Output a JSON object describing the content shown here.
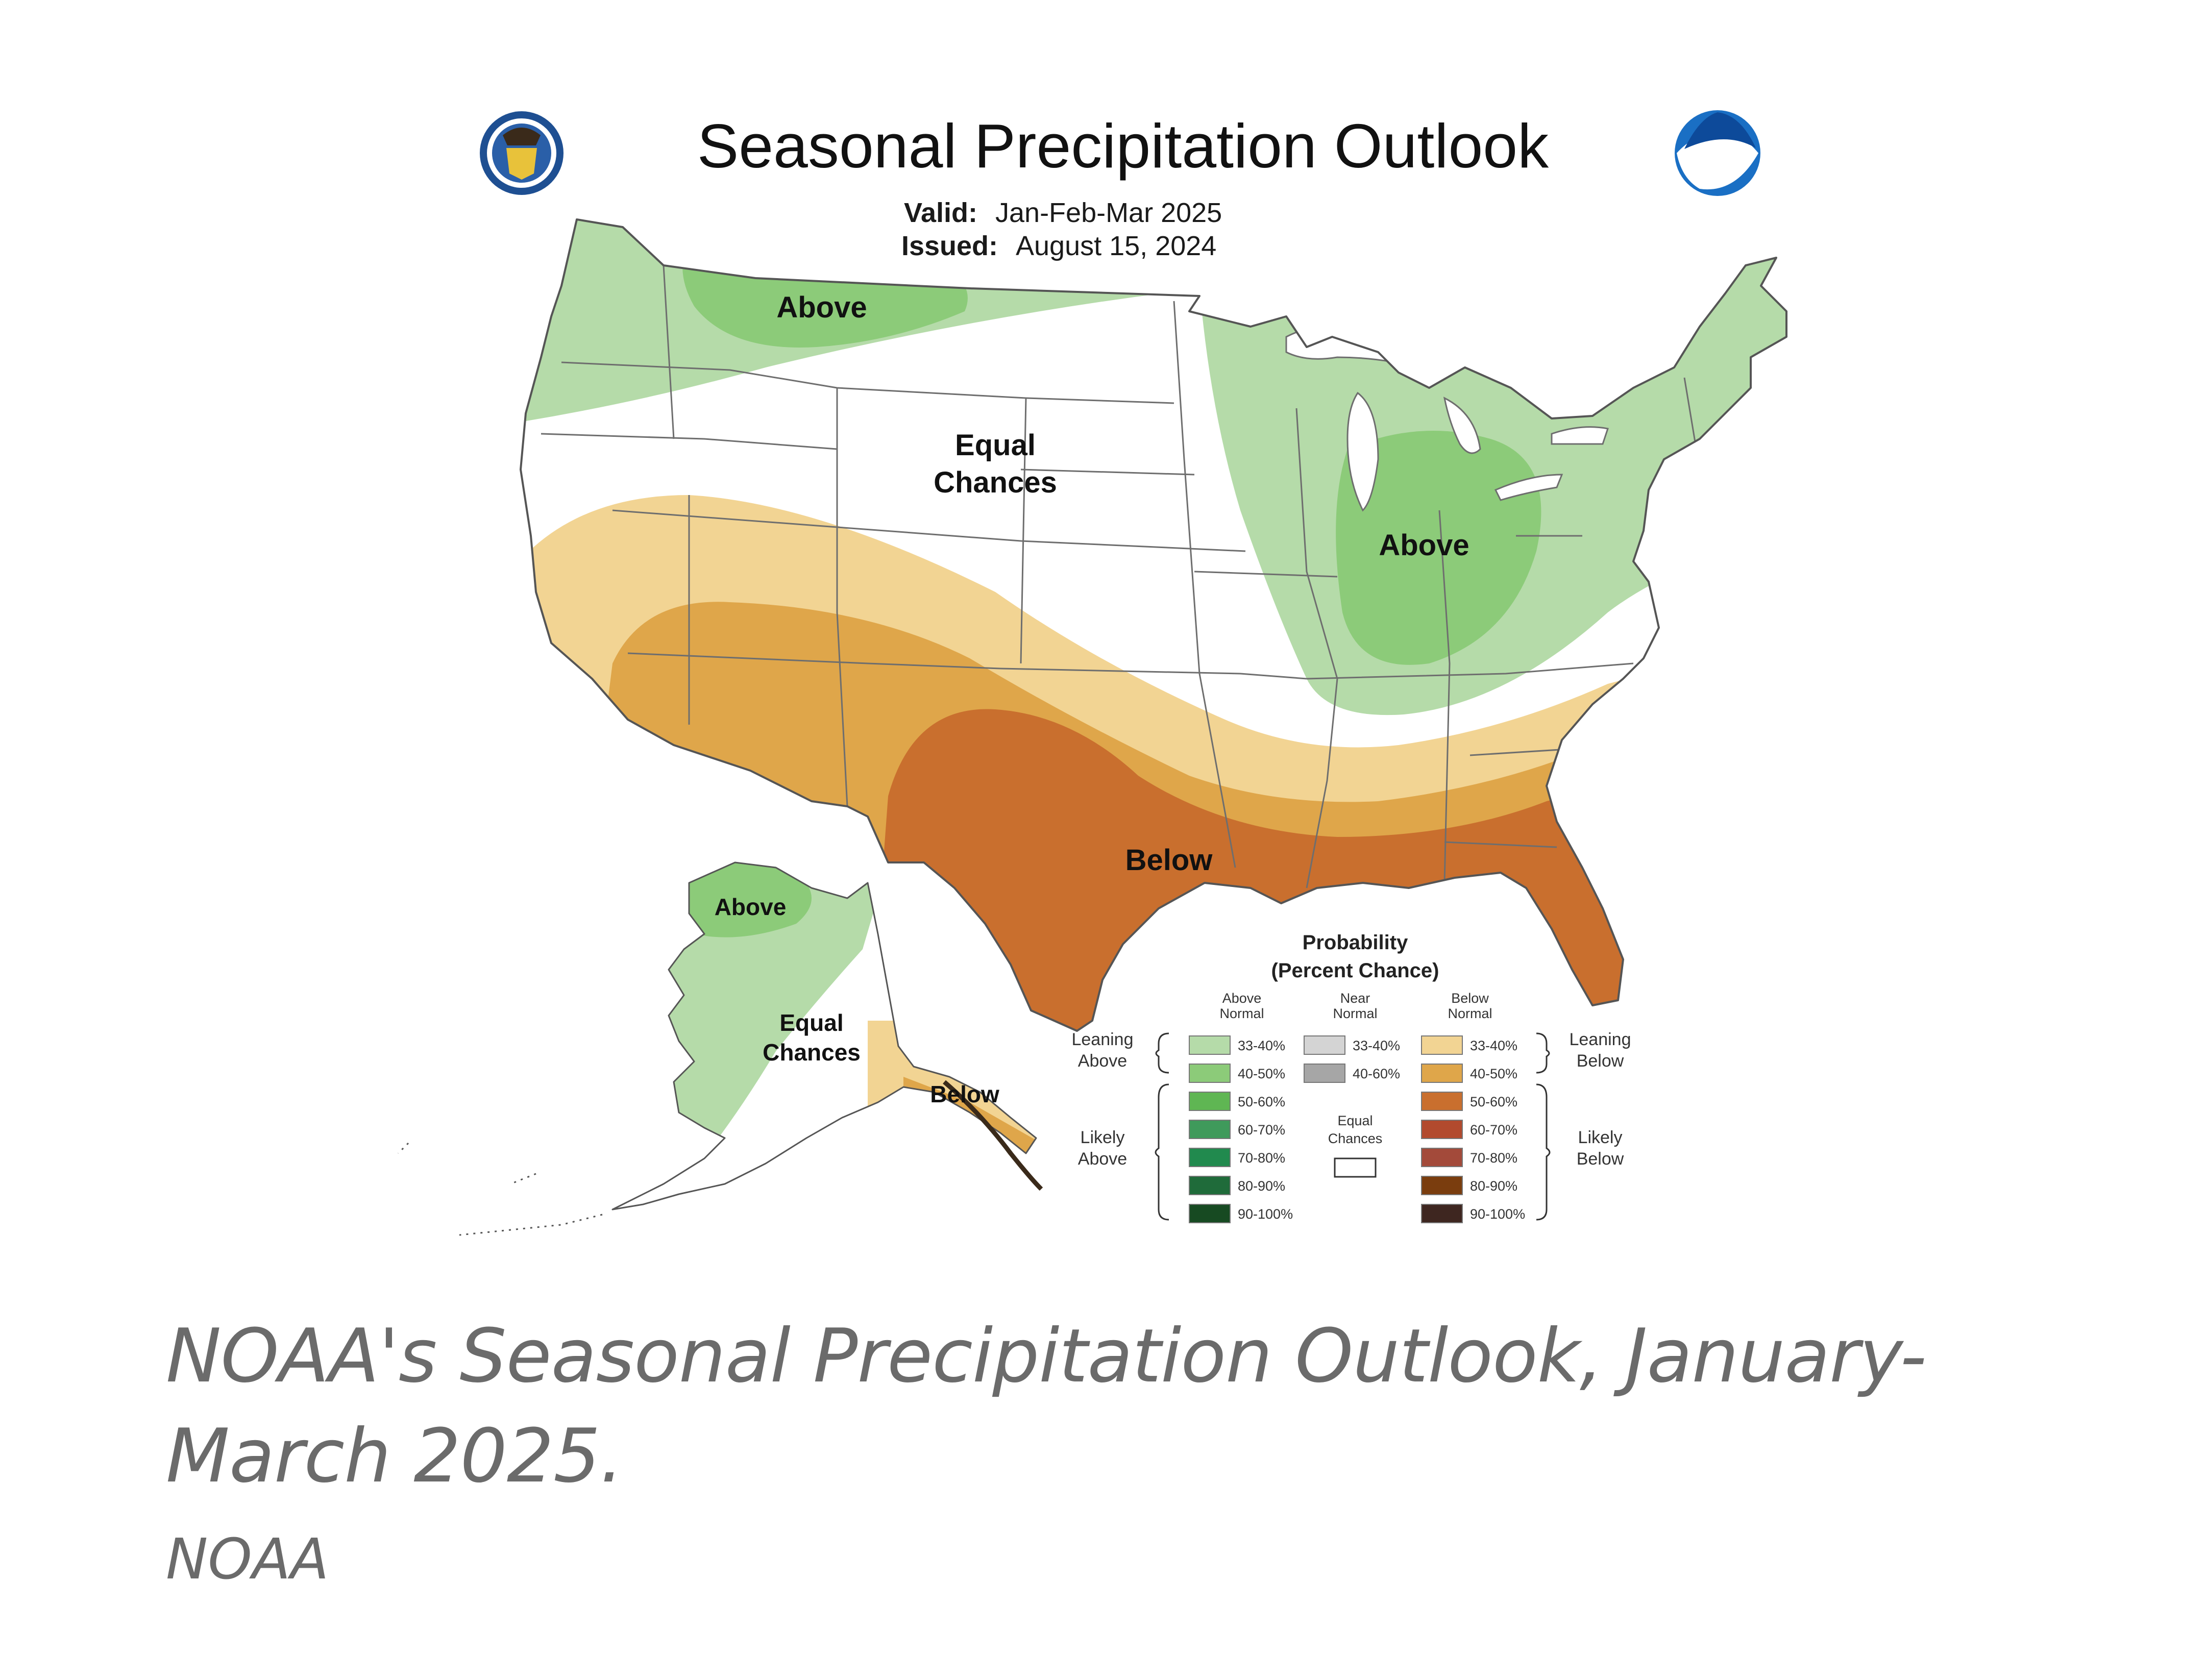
{
  "map": {
    "title": "Seasonal Precipitation Outlook",
    "valid_label": "Valid:",
    "valid_value": "Jan-Feb-Mar 2025",
    "issued_label": "Issued:",
    "issued_value": "August 15, 2024",
    "regions": {
      "northwest_above": "Above",
      "plains_equal_1": "Equal",
      "plains_equal_2": "Chances",
      "midwest_above": "Above",
      "south_below": "Below",
      "alaska_above": "Above",
      "alaska_equal_1": "Equal",
      "alaska_equal_2": "Chances",
      "alaska_below": "Below"
    },
    "colors": {
      "above_leaning": "#b5dba9",
      "above_40": "#8ccb79",
      "leaning_below": "#f2d493",
      "below_40": "#dfa64a",
      "below_50": "#c96f2e",
      "ocean": "#ffffff",
      "noaa_blue": "#1a6fc4"
    },
    "icons": {
      "left_logo": "department-of-commerce-seal-icon",
      "right_logo": "noaa-logo-icon"
    },
    "legend": {
      "title_1": "Probability",
      "title_2": "(Percent Chance)",
      "col_above_1": "Above",
      "col_above_2": "Normal",
      "col_near_1": "Near",
      "col_near_2": "Normal",
      "col_below_1": "Below",
      "col_below_2": "Normal",
      "leaning_above_1": "Leaning",
      "leaning_above_2": "Above",
      "likely_above_1": "Likely",
      "likely_above_2": "Above",
      "leaning_below_1": "Leaning",
      "leaning_below_2": "Below",
      "likely_below_1": "Likely",
      "likely_below_2": "Below",
      "equal_1": "Equal",
      "equal_2": "Chances",
      "above_rows": [
        {
          "label": "33-40%",
          "color": "#b5dba9"
        },
        {
          "label": "40-50%",
          "color": "#8ccb79"
        },
        {
          "label": "50-60%",
          "color": "#5fb653"
        },
        {
          "label": "60-70%",
          "color": "#3f9a5b"
        },
        {
          "label": "70-80%",
          "color": "#218a4e"
        },
        {
          "label": "80-90%",
          "color": "#1f6b3a"
        },
        {
          "label": "90-100%",
          "color": "#174a22"
        }
      ],
      "near_rows": [
        {
          "label": "33-40%",
          "color": "#d4d4d4"
        },
        {
          "label": "40-60%",
          "color": "#a6a6a6"
        }
      ],
      "below_rows": [
        {
          "label": "33-40%",
          "color": "#f2d493"
        },
        {
          "label": "40-50%",
          "color": "#dfa64a"
        },
        {
          "label": "50-60%",
          "color": "#c96f2e"
        },
        {
          "label": "60-70%",
          "color": "#b24a2e"
        },
        {
          "label": "70-80%",
          "color": "#a34a3a"
        },
        {
          "label": "80-90%",
          "color": "#7a3d0e"
        },
        {
          "label": "90-100%",
          "color": "#3e2620"
        }
      ]
    }
  },
  "caption": {
    "text": "NOAA's Seasonal Precipitation Outlook, January-March 2025.",
    "credit": "NOAA"
  }
}
